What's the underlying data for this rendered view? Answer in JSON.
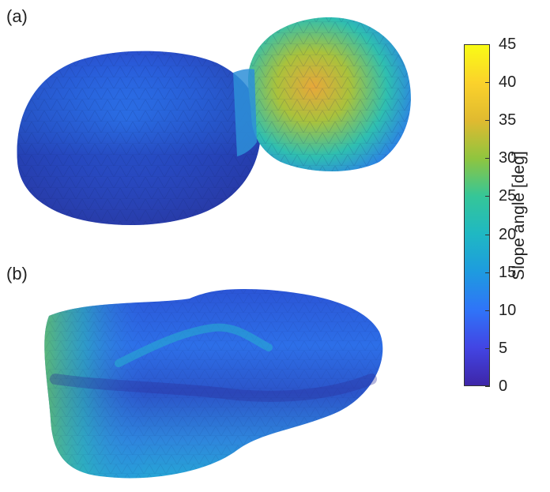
{
  "panels": {
    "a": {
      "label": "(a)"
    },
    "b": {
      "label": "(b)"
    }
  },
  "colorbar": {
    "title": "Slope angle [deg]",
    "range": [
      0,
      45
    ],
    "ticks": [
      "0",
      "5",
      "10",
      "15",
      "20",
      "25",
      "30",
      "35",
      "40",
      "45"
    ],
    "colormap": [
      "#3e26a8",
      "#4245e4",
      "#2f74f8",
      "#1e9bdf",
      "#1fb8c3",
      "#35c698",
      "#8fc53f",
      "#e0ba30",
      "#fbd22b",
      "#f9fb15"
    ]
  }
}
